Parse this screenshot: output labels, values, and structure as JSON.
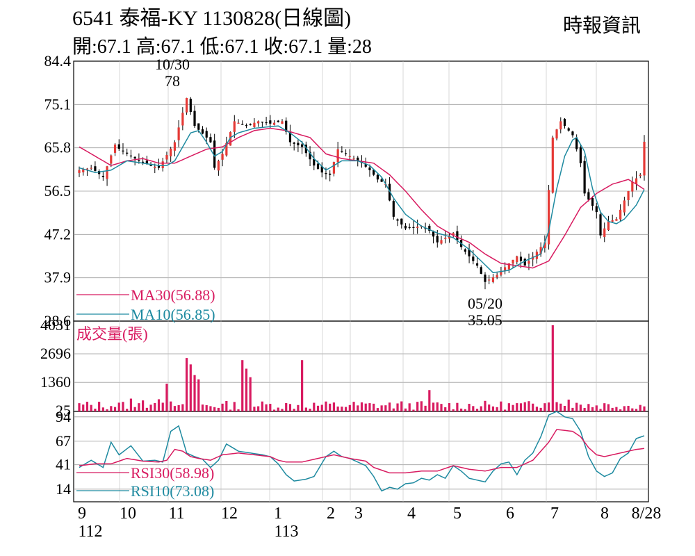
{
  "header": {
    "title": "6541  泰福-KY 1130828(日線圖)",
    "ohlc": "開:67.1 高:67.1 低:67.1 收:67.1 量:28",
    "source": "時報資訊"
  },
  "chart_data": [
    {
      "type": "candlestick",
      "title": "",
      "ylim": [
        28.6,
        84.4
      ],
      "yticks": [
        "84.4",
        "75.1",
        "65.8",
        "56.5",
        "47.2",
        "37.9",
        "28.6"
      ],
      "ytick_values": [
        84.4,
        75.1,
        65.8,
        56.5,
        47.2,
        37.9,
        28.6
      ],
      "grid": true,
      "annotations": [
        {
          "date": "10/30",
          "value": "78"
        },
        {
          "date": "05/20",
          "value": "35.05"
        }
      ],
      "legend": [
        {
          "name": "MA30(56.88)",
          "color": "#d81b60"
        },
        {
          "name": "MA10(56.85)",
          "color": "#1e8aa0"
        }
      ],
      "colors": {
        "up": "#e53935",
        "down": "#000000",
        "ma30": "#d81b60",
        "ma10": "#1e8aa0"
      }
    },
    {
      "type": "bar",
      "title": "成交量(張)",
      "ylim": [
        0,
        4031
      ],
      "yticks": [
        "4031",
        "2696",
        "1360",
        "25"
      ],
      "ytick_values": [
        4031,
        2696,
        1360,
        25
      ],
      "grid": true,
      "color": "#d81b60",
      "spike": 4031
    },
    {
      "type": "line",
      "title": "",
      "ylim": [
        0,
        100
      ],
      "yticks": [
        "94",
        "67",
        "41",
        "14"
      ],
      "ytick_values": [
        94,
        67,
        41,
        14
      ],
      "grid": true,
      "legend": [
        {
          "name": "RSI30(58.98)",
          "color": "#d81b60"
        },
        {
          "name": "RSI10(73.08)",
          "color": "#1e8aa0"
        }
      ]
    }
  ],
  "x_axis": {
    "month_labels": [
      "9",
      "10",
      "11",
      "12",
      "1",
      "2",
      "3",
      "4",
      "5",
      "6",
      "7",
      "8",
      "8/28"
    ],
    "year_labels": [
      "112",
      "113"
    ]
  },
  "price_path": [
    [
      0,
      61
    ],
    [
      3,
      61.5
    ],
    [
      6,
      59.5
    ],
    [
      9,
      66.5
    ],
    [
      10,
      65.6
    ],
    [
      14,
      63.5
    ],
    [
      18,
      62
    ],
    [
      20,
      61.5
    ],
    [
      24,
      67
    ],
    [
      27,
      76.5
    ],
    [
      29,
      70.5
    ],
    [
      32,
      68
    ],
    [
      33,
      67
    ],
    [
      34,
      61.5
    ],
    [
      36,
      64.5
    ],
    [
      39,
      71.5
    ],
    [
      42,
      70.5
    ],
    [
      45,
      71.5
    ],
    [
      48,
      71
    ],
    [
      51,
      71.5
    ],
    [
      53,
      67
    ],
    [
      56,
      66
    ],
    [
      59,
      62
    ],
    [
      61,
      60.5
    ],
    [
      63,
      60
    ],
    [
      65,
      65.5
    ],
    [
      68,
      64
    ],
    [
      71,
      62.5
    ],
    [
      73,
      61
    ],
    [
      75,
      59
    ],
    [
      77,
      58
    ],
    [
      79,
      51
    ],
    [
      82,
      48.5
    ],
    [
      86,
      49
    ],
    [
      88,
      48
    ],
    [
      90,
      45.5
    ],
    [
      94,
      47.5
    ],
    [
      96,
      44.5
    ],
    [
      98,
      42.5
    ],
    [
      100,
      40.5
    ],
    [
      102,
      37
    ],
    [
      105,
      38.5
    ],
    [
      108,
      41
    ],
    [
      110,
      42.5
    ],
    [
      112,
      40.5
    ],
    [
      115,
      43.5
    ],
    [
      117,
      45.5
    ],
    [
      119,
      68
    ],
    [
      121,
      71.5
    ],
    [
      124,
      68.5
    ],
    [
      126,
      62.5
    ],
    [
      127,
      56
    ],
    [
      130,
      52
    ],
    [
      131,
      47
    ],
    [
      133,
      50
    ],
    [
      135,
      50.5
    ],
    [
      137,
      54.5
    ],
    [
      139,
      58.5
    ],
    [
      141,
      60
    ],
    [
      142,
      67.1
    ]
  ],
  "ma10_path": [
    [
      0,
      61.5
    ],
    [
      4,
      60.5
    ],
    [
      8,
      61
    ],
    [
      12,
      63
    ],
    [
      16,
      62.5
    ],
    [
      20,
      62
    ],
    [
      22,
      62
    ],
    [
      24,
      63
    ],
    [
      26,
      66
    ],
    [
      28,
      69
    ],
    [
      30,
      69.5
    ],
    [
      32,
      67
    ],
    [
      34,
      64
    ],
    [
      36,
      65
    ],
    [
      38,
      68
    ],
    [
      40,
      69
    ],
    [
      44,
      70
    ],
    [
      50,
      70.5
    ],
    [
      53,
      69
    ],
    [
      56,
      67
    ],
    [
      59,
      63.5
    ],
    [
      62,
      61
    ],
    [
      64,
      62
    ],
    [
      66,
      63
    ],
    [
      70,
      63
    ],
    [
      73,
      62
    ],
    [
      76,
      59.5
    ],
    [
      79,
      55
    ],
    [
      82,
      51.5
    ],
    [
      86,
      49
    ],
    [
      90,
      47.5
    ],
    [
      94,
      46.5
    ],
    [
      98,
      44
    ],
    [
      101,
      41.5
    ],
    [
      104,
      39
    ],
    [
      108,
      39.5
    ],
    [
      112,
      41.5
    ],
    [
      116,
      43
    ],
    [
      118,
      48
    ],
    [
      120,
      57
    ],
    [
      122,
      64
    ],
    [
      124,
      67.5
    ],
    [
      125,
      68
    ],
    [
      127,
      65
    ],
    [
      129,
      57
    ],
    [
      131,
      52
    ],
    [
      133,
      50
    ],
    [
      135,
      49.5
    ],
    [
      137,
      50.5
    ],
    [
      140,
      53.5
    ],
    [
      142,
      56.85
    ]
  ],
  "ma30_path": [
    [
      0,
      66
    ],
    [
      4,
      64
    ],
    [
      8,
      62
    ],
    [
      12,
      63
    ],
    [
      16,
      63.5
    ],
    [
      20,
      62.5
    ],
    [
      24,
      62.5
    ],
    [
      28,
      64
    ],
    [
      32,
      65.5
    ],
    [
      36,
      66
    ],
    [
      40,
      68
    ],
    [
      44,
      69.5
    ],
    [
      48,
      70
    ],
    [
      52,
      69.5
    ],
    [
      54,
      69
    ],
    [
      58,
      68
    ],
    [
      62,
      64.5
    ],
    [
      66,
      63.5
    ],
    [
      70,
      63
    ],
    [
      74,
      62.5
    ],
    [
      78,
      60
    ],
    [
      82,
      56.5
    ],
    [
      86,
      52.5
    ],
    [
      90,
      49
    ],
    [
      94,
      47
    ],
    [
      98,
      45.5
    ],
    [
      102,
      43
    ],
    [
      106,
      41
    ],
    [
      110,
      40.5
    ],
    [
      114,
      40
    ],
    [
      118,
      41.5
    ],
    [
      122,
      47
    ],
    [
      126,
      53
    ],
    [
      130,
      56
    ],
    [
      134,
      58
    ],
    [
      138,
      59
    ],
    [
      140,
      58
    ],
    [
      142,
      56.88
    ]
  ],
  "rsi10_path": [
    [
      0,
      38
    ],
    [
      3,
      46
    ],
    [
      6,
      38
    ],
    [
      8,
      66
    ],
    [
      10,
      52
    ],
    [
      13,
      62
    ],
    [
      16,
      45
    ],
    [
      19,
      46
    ],
    [
      21,
      44
    ],
    [
      23,
      78
    ],
    [
      25,
      84
    ],
    [
      27,
      54
    ],
    [
      29,
      50
    ],
    [
      31,
      47
    ],
    [
      33,
      38
    ],
    [
      35,
      46
    ],
    [
      37,
      64
    ],
    [
      40,
      56
    ],
    [
      43,
      54
    ],
    [
      46,
      52
    ],
    [
      48,
      50
    ],
    [
      50,
      42
    ],
    [
      52,
      30
    ],
    [
      54,
      23
    ],
    [
      57,
      25
    ],
    [
      59,
      28
    ],
    [
      62,
      50
    ],
    [
      64,
      56
    ],
    [
      66,
      50
    ],
    [
      68,
      48
    ],
    [
      70,
      44
    ],
    [
      72,
      40
    ],
    [
      74,
      28
    ],
    [
      76,
      12
    ],
    [
      78,
      16
    ],
    [
      80,
      14
    ],
    [
      82,
      20
    ],
    [
      84,
      21
    ],
    [
      86,
      26
    ],
    [
      88,
      24
    ],
    [
      90,
      30
    ],
    [
      92,
      26
    ],
    [
      94,
      40
    ],
    [
      96,
      34
    ],
    [
      98,
      26
    ],
    [
      100,
      24
    ],
    [
      102,
      22
    ],
    [
      104,
      34
    ],
    [
      106,
      42
    ],
    [
      108,
      44
    ],
    [
      110,
      30
    ],
    [
      112,
      46
    ],
    [
      114,
      54
    ],
    [
      116,
      72
    ],
    [
      118,
      96
    ],
    [
      120,
      100
    ],
    [
      122,
      94
    ],
    [
      124,
      92
    ],
    [
      126,
      78
    ],
    [
      128,
      50
    ],
    [
      130,
      34
    ],
    [
      132,
      28
    ],
    [
      134,
      32
    ],
    [
      136,
      48
    ],
    [
      138,
      54
    ],
    [
      140,
      70
    ],
    [
      142,
      73.08
    ]
  ],
  "rsi30_path": [
    [
      0,
      40
    ],
    [
      4,
      42
    ],
    [
      8,
      42
    ],
    [
      12,
      48
    ],
    [
      16,
      45
    ],
    [
      20,
      44
    ],
    [
      22,
      46
    ],
    [
      24,
      58
    ],
    [
      26,
      56
    ],
    [
      28,
      50
    ],
    [
      30,
      48
    ],
    [
      33,
      46
    ],
    [
      36,
      52
    ],
    [
      40,
      54
    ],
    [
      44,
      52
    ],
    [
      48,
      50
    ],
    [
      50,
      46
    ],
    [
      52,
      44
    ],
    [
      56,
      44
    ],
    [
      60,
      48
    ],
    [
      64,
      52
    ],
    [
      68,
      48
    ],
    [
      72,
      45
    ],
    [
      74,
      38
    ],
    [
      78,
      32
    ],
    [
      82,
      32
    ],
    [
      86,
      34
    ],
    [
      90,
      34
    ],
    [
      94,
      40
    ],
    [
      98,
      36
    ],
    [
      102,
      34
    ],
    [
      106,
      38
    ],
    [
      110,
      38
    ],
    [
      114,
      46
    ],
    [
      116,
      56
    ],
    [
      118,
      66
    ],
    [
      120,
      80
    ],
    [
      124,
      78
    ],
    [
      126,
      72
    ],
    [
      128,
      60
    ],
    [
      130,
      52
    ],
    [
      132,
      50
    ],
    [
      134,
      52
    ],
    [
      136,
      54
    ],
    [
      138,
      56
    ],
    [
      140,
      58
    ],
    [
      142,
      58.98
    ]
  ]
}
